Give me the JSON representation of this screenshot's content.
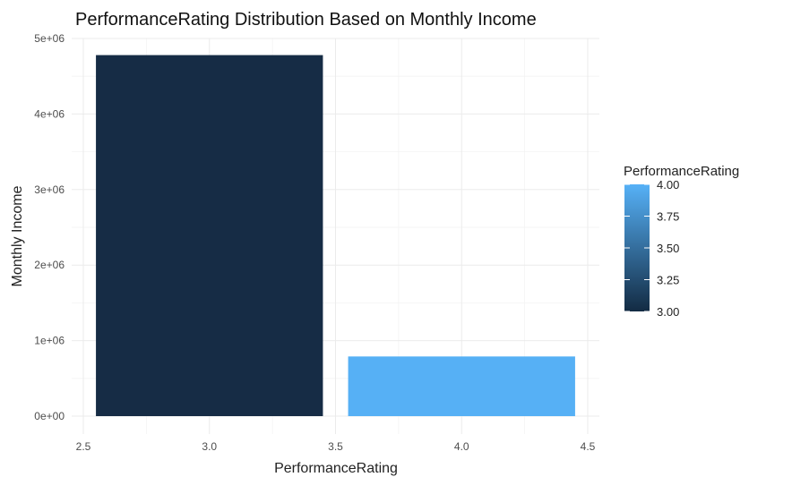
{
  "chart_data": {
    "type": "bar",
    "title": "PerformanceRating Distribution Based on Monthly Income",
    "xlabel": "PerformanceRating",
    "ylabel": "Monthly Income",
    "x_ticks": [
      "2.5",
      "3.0",
      "3.5",
      "4.0",
      "4.5"
    ],
    "x_tick_values": [
      2.5,
      3.0,
      3.5,
      4.0,
      4.5
    ],
    "y_ticks": [
      "0e+00",
      "1e+06",
      "2e+06",
      "3e+06",
      "4e+06",
      "5e+06"
    ],
    "y_tick_values": [
      0,
      1000000,
      2000000,
      3000000,
      4000000,
      5000000
    ],
    "xlim": [
      2.5,
      4.5
    ],
    "ylim": [
      0,
      5000000
    ],
    "bars": [
      {
        "x": 3,
        "value": 4780000,
        "color": "#162c45"
      },
      {
        "x": 4,
        "value": 790000,
        "color": "#56b0f5"
      }
    ],
    "bar_width": 0.9,
    "grid": true,
    "legend": {
      "title": "PerformanceRating",
      "position": "right",
      "type": "colorbar",
      "labels": [
        "4.00",
        "3.75",
        "3.50",
        "3.25",
        "3.00"
      ],
      "values": [
        4.0,
        3.75,
        3.5,
        3.25,
        3.0
      ],
      "color_low": "#132b43",
      "color_high": "#56b1f7"
    }
  }
}
